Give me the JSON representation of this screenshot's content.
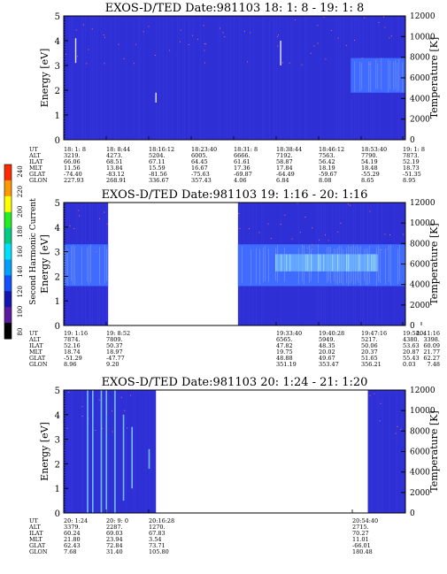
{
  "colors": {
    "background": "#2f2fd6",
    "band_blue": "#3f6cff",
    "band_cyan": "#7fd7ff",
    "streak": "#e6e6ff",
    "speckle": "#ff6a5a",
    "frame": "#000000"
  },
  "colorbar": {
    "title": "Second Harmonic Current",
    "ticks": [
      "240",
      "220",
      "200",
      "180",
      "160",
      "140",
      "120",
      "100",
      "80"
    ],
    "colors": [
      "#ff2a00",
      "#ff9900",
      "#ffff00",
      "#22ee22",
      "#00cc88",
      "#00e0ff",
      "#00a0ff",
      "#1050ff",
      "#1414b0",
      "#5a1aa0",
      "#000000"
    ]
  },
  "chart_data": [
    {
      "type": "heatmap",
      "title": "EXOS-D/TED   Date:981103  18: 1: 8 - 19: 1: 8",
      "ylabel": "Energy [eV]",
      "ylabel_right": "Temperature [K]",
      "ylim": [
        0,
        5
      ],
      "ylim_right": [
        0,
        12000
      ],
      "yticks": [
        "0",
        "1",
        "2",
        "3",
        "4",
        "5"
      ],
      "yticks_right": [
        "0",
        "2000",
        "4000",
        "6000",
        "8000",
        "10000",
        "12000"
      ],
      "row_labels": [
        "UT",
        "ALT",
        "ILAT",
        "MLT",
        "GLAT",
        "GLON"
      ],
      "columns": [
        [
          "18: 1: 8",
          "3219.",
          "66.06",
          "11.56",
          "-74.40",
          "227.93"
        ],
        [
          "18: 8:44",
          "4273.",
          "68.51",
          "13.84",
          "-83.12",
          "268.91"
        ],
        [
          "18:16:12",
          "5204.",
          "67.11",
          "15.59",
          "-81.56",
          "336.67"
        ],
        [
          "18:23:40",
          "6005.",
          "64.45",
          "16.67",
          "-75.63",
          "357.43"
        ],
        [
          "18:31: 8",
          "6666.",
          "61.61",
          "17.36",
          "-69.87",
          "4.06"
        ],
        [
          "18:38:44",
          "7192.",
          "58.87",
          "17.84",
          "-64.49",
          "6.84"
        ],
        [
          "18:46:12",
          "7563.",
          "56.42",
          "18.19",
          "-59.67",
          "8.08"
        ],
        [
          "18:53:40",
          "7790.",
          "54.19",
          "18.48",
          "-55.29",
          "8.65"
        ],
        [
          "19: 1: 8",
          "7873.",
          "52.19",
          "18.73",
          "-51.35",
          "8.95"
        ]
      ],
      "data_spans": [
        [
          0,
          1
        ]
      ],
      "band_spans": [
        [
          0.84,
          1
        ]
      ],
      "band_energy": [
        1.9,
        3.3
      ],
      "cyan_spans": [],
      "streaks": [
        {
          "t": 0.035,
          "e_low": 3.1,
          "e_high": 4.1
        },
        {
          "t": 0.27,
          "e_low": 1.5,
          "e_high": 1.9
        },
        {
          "t": 0.635,
          "e_low": 3.0,
          "e_high": 4.0
        }
      ],
      "vlines": []
    },
    {
      "type": "heatmap",
      "title": "EXOS-D/TED   Date:981103  19: 1:16 - 20: 1:16",
      "ylabel": "Energy [eV]",
      "ylabel_right": "Temperature [K]",
      "ylim": [
        0,
        5
      ],
      "ylim_right": [
        0,
        12000
      ],
      "yticks": [
        "0",
        "1",
        "2",
        "3",
        "4",
        "5"
      ],
      "yticks_right": [
        "0",
        "2000",
        "4000",
        "6000",
        "8000",
        "10000",
        "12000"
      ],
      "row_labels": [
        "UT",
        "ALT",
        "ILAT",
        "MLT",
        "GLAT",
        "GLON"
      ],
      "columns": [
        [
          "19: 1:16",
          "7874.",
          "52.16",
          "18.74",
          "-51.29",
          "8.96"
        ],
        [
          "19: 8:52",
          "7809.",
          "50.37",
          "18.97",
          "-47.77",
          "9.20"
        ],
        [
          "19:33:40",
          "6565.",
          "47.82",
          "19.75",
          "48.88",
          "351.19"
        ],
        [
          "19:40:28",
          "5949.",
          "48.35",
          "20.02",
          "49.67",
          "353.47"
        ],
        [
          "19:47:16",
          "5217.",
          "50.06",
          "20.37",
          "51.65",
          "356.21"
        ],
        [
          "19:54: 4",
          "4380.",
          "53.63",
          "20.87",
          "55.43",
          "0.03"
        ],
        [
          "20: 1:16",
          "3398.",
          "60.09",
          "21.77",
          "62.27",
          "7.48"
        ]
      ],
      "data_spans": [
        [
          0,
          0.13
        ],
        [
          0.51,
          1
        ]
      ],
      "band_spans": [
        [
          0,
          0.13
        ],
        [
          0.51,
          1
        ]
      ],
      "band_energy": [
        1.6,
        3.3
      ],
      "cyan_spans": [
        [
          0.62,
          0.92
        ]
      ],
      "streaks": [],
      "vlines": []
    },
    {
      "type": "heatmap",
      "title": "EXOS-D/TED   Date:981103  20: 1:24 - 21: 1:20",
      "ylabel": "Energy [eV]",
      "ylabel_right": "Temperature [K]",
      "ylim": [
        0,
        5
      ],
      "ylim_right": [
        0,
        12000
      ],
      "yticks": [
        "0",
        "1",
        "2",
        "3",
        "4",
        "5"
      ],
      "yticks_right": [
        "0",
        "2000",
        "4000",
        "6000",
        "8000",
        "10000",
        "12000"
      ],
      "row_labels": [
        "UT",
        "ALT",
        "ILAT",
        "MLT",
        "GLAT",
        "GLON"
      ],
      "columns": [
        [
          "20: 1:24",
          "3379.",
          "60.24",
          "21.80",
          "62.43",
          "7.68"
        ],
        [
          "20: 9: 0",
          "2287.",
          "69.03",
          "23.94",
          "72.84",
          "31.40"
        ],
        [
          "20:16:28",
          "1270.",
          "67.83",
          "3.54",
          "73.71",
          "105.80"
        ],
        [
          "20:54:40",
          "2715.",
          "70.27",
          "11.01",
          "-66.01",
          "180.48"
        ]
      ],
      "data_spans": [
        [
          0,
          0.27
        ],
        [
          0.89,
          1
        ]
      ],
      "band_spans": [],
      "band_energy": [
        0,
        0
      ],
      "cyan_spans": [],
      "streaks": [],
      "vlines": [
        {
          "t": 0.07,
          "e_low": 0,
          "e_high": 5
        },
        {
          "t": 0.085,
          "e_low": 0,
          "e_high": 5
        },
        {
          "t": 0.11,
          "e_low": 0,
          "e_high": 5
        },
        {
          "t": 0.125,
          "e_low": 0,
          "e_high": 5
        },
        {
          "t": 0.15,
          "e_low": 0,
          "e_high": 5
        },
        {
          "t": 0.175,
          "e_low": 0.5,
          "e_high": 4
        },
        {
          "t": 0.2,
          "e_low": 1.0,
          "e_high": 3.5
        },
        {
          "t": 0.25,
          "e_low": 1.8,
          "e_high": 2.6
        }
      ]
    }
  ]
}
